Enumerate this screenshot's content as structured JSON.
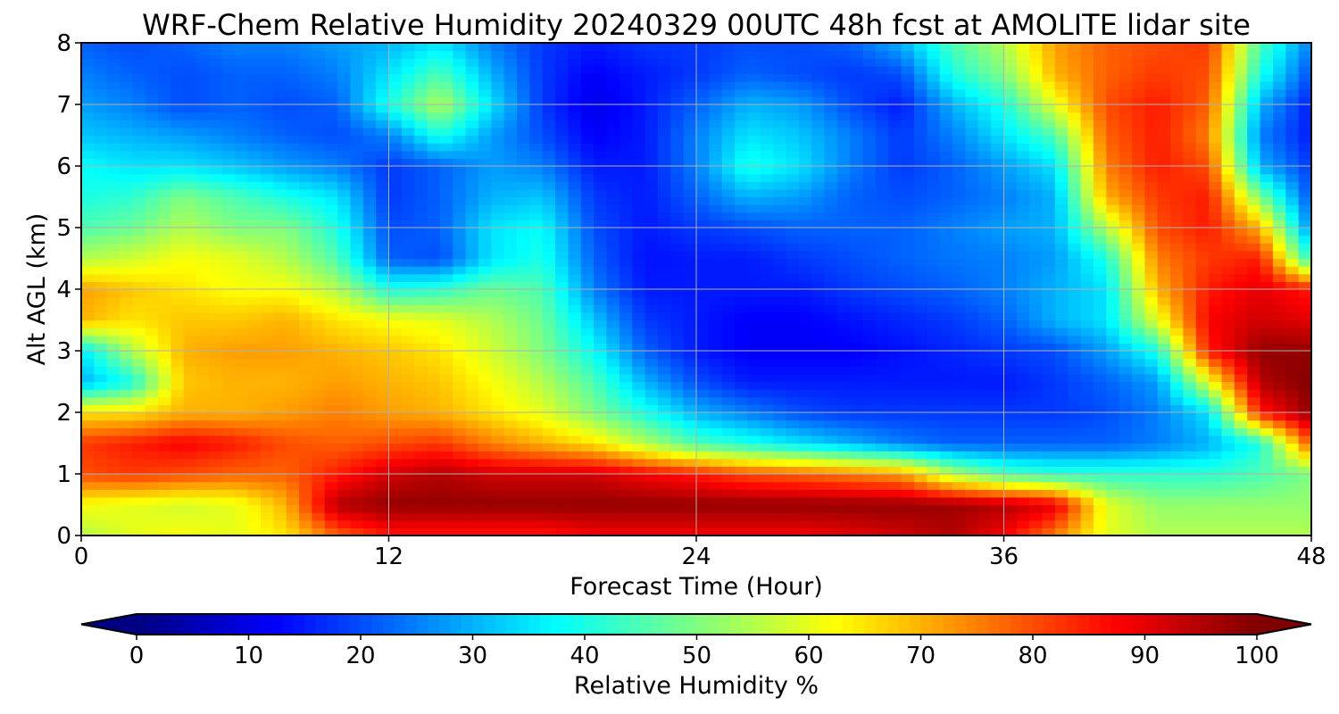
{
  "chart_data": {
    "type": "heatmap",
    "title": "WRF-Chem Relative Humidity 20240329 00UTC 48h fcst at AMOLITE lidar site",
    "xlabel": "Forecast Time (Hour)",
    "ylabel": "Alt AGL (km)",
    "xlim": [
      0,
      48
    ],
    "ylim": [
      0,
      8
    ],
    "x_ticks": [
      0,
      12,
      24,
      36,
      48
    ],
    "y_ticks": [
      0,
      1,
      2,
      3,
      4,
      5,
      6,
      7,
      8
    ],
    "grid": true,
    "colormap": "jet",
    "colorbar": {
      "label": "Relative Humidity %",
      "min": 0,
      "max": 100,
      "ticks": [
        0,
        10,
        20,
        30,
        40,
        50,
        60,
        70,
        80,
        90,
        100
      ],
      "extend": "both",
      "orientation": "horizontal"
    },
    "value_range": [
      0,
      100
    ],
    "x": [
      0,
      2,
      4,
      6,
      8,
      10,
      12,
      14,
      16,
      18,
      20,
      22,
      24,
      26,
      28,
      30,
      32,
      34,
      36,
      38,
      40,
      42,
      44,
      46,
      48
    ],
    "y": [
      0,
      0.5,
      1,
      1.5,
      2,
      2.5,
      3,
      3.5,
      4,
      4.5,
      5,
      5.5,
      6,
      6.5,
      7,
      7.5,
      8
    ],
    "z": [
      [
        55,
        60,
        62,
        60,
        65,
        78,
        85,
        85,
        85,
        85,
        88,
        88,
        88,
        88,
        88,
        90,
        92,
        95,
        88,
        75,
        60,
        55,
        55,
        55,
        55
      ],
      [
        62,
        60,
        58,
        60,
        70,
        95,
        98,
        98,
        98,
        98,
        98,
        98,
        98,
        98,
        98,
        98,
        98,
        97,
        95,
        90,
        60,
        52,
        52,
        52,
        52
      ],
      [
        80,
        82,
        80,
        78,
        78,
        85,
        92,
        95,
        92,
        92,
        92,
        88,
        85,
        80,
        78,
        75,
        72,
        55,
        45,
        42,
        42,
        42,
        42,
        45,
        50
      ],
      [
        82,
        85,
        88,
        85,
        80,
        78,
        80,
        82,
        75,
        70,
        65,
        55,
        45,
        40,
        35,
        30,
        25,
        22,
        22,
        22,
        22,
        25,
        30,
        40,
        80
      ],
      [
        65,
        65,
        70,
        70,
        72,
        75,
        72,
        70,
        65,
        60,
        50,
        40,
        30,
        25,
        20,
        18,
        18,
        18,
        18,
        18,
        20,
        25,
        35,
        85,
        98
      ],
      [
        30,
        40,
        68,
        70,
        70,
        72,
        70,
        68,
        62,
        55,
        45,
        30,
        20,
        15,
        15,
        15,
        15,
        15,
        15,
        18,
        22,
        28,
        60,
        95,
        100
      ],
      [
        35,
        55,
        70,
        72,
        72,
        70,
        68,
        65,
        58,
        50,
        38,
        22,
        15,
        12,
        12,
        12,
        14,
        16,
        18,
        20,
        28,
        40,
        85,
        98,
        98
      ],
      [
        70,
        65,
        68,
        68,
        70,
        65,
        62,
        60,
        55,
        48,
        32,
        18,
        15,
        12,
        12,
        14,
        16,
        18,
        22,
        30,
        35,
        60,
        88,
        92,
        90
      ],
      [
        72,
        68,
        65,
        62,
        62,
        55,
        40,
        42,
        48,
        45,
        25,
        15,
        15,
        15,
        15,
        18,
        20,
        22,
        25,
        30,
        35,
        70,
        85,
        90,
        85
      ],
      [
        55,
        58,
        62,
        60,
        55,
        45,
        22,
        20,
        35,
        40,
        22,
        14,
        15,
        15,
        18,
        20,
        22,
        24,
        25,
        28,
        40,
        75,
        82,
        85,
        40
      ],
      [
        45,
        48,
        55,
        50,
        50,
        40,
        20,
        22,
        35,
        38,
        20,
        15,
        18,
        20,
        22,
        22,
        22,
        25,
        28,
        30,
        55,
        80,
        85,
        70,
        25
      ],
      [
        40,
        42,
        50,
        45,
        40,
        35,
        18,
        22,
        30,
        32,
        18,
        15,
        22,
        30,
        28,
        22,
        20,
        22,
        25,
        30,
        70,
        82,
        85,
        50,
        20
      ],
      [
        38,
        35,
        35,
        32,
        28,
        25,
        18,
        22,
        28,
        25,
        15,
        15,
        25,
        40,
        35,
        25,
        18,
        22,
        28,
        35,
        75,
        85,
        80,
        30,
        18
      ],
      [
        32,
        30,
        28,
        25,
        22,
        20,
        25,
        40,
        28,
        20,
        12,
        15,
        25,
        35,
        32,
        25,
        18,
        25,
        35,
        45,
        78,
        85,
        75,
        25,
        15
      ],
      [
        28,
        25,
        20,
        22,
        20,
        22,
        40,
        55,
        35,
        18,
        10,
        15,
        22,
        30,
        28,
        20,
        15,
        30,
        40,
        60,
        80,
        85,
        78,
        30,
        15
      ],
      [
        25,
        22,
        20,
        22,
        22,
        25,
        35,
        45,
        30,
        18,
        12,
        15,
        18,
        22,
        20,
        18,
        20,
        40,
        50,
        70,
        78,
        82,
        80,
        40,
        20
      ],
      [
        22,
        20,
        22,
        25,
        25,
        28,
        30,
        35,
        25,
        18,
        15,
        18,
        18,
        20,
        20,
        22,
        30,
        45,
        55,
        72,
        78,
        80,
        82,
        45,
        25
      ]
    ]
  }
}
